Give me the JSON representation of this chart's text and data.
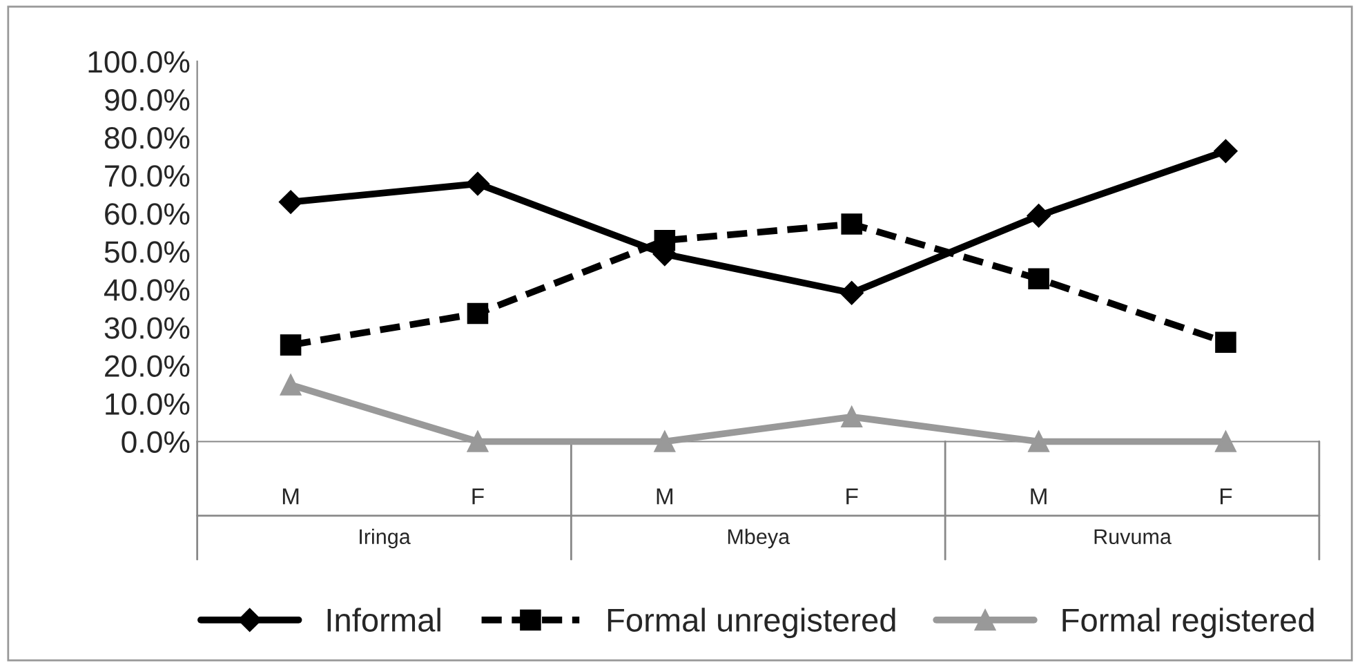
{
  "chart_data": {
    "type": "line",
    "categories": [
      "M",
      "F",
      "M",
      "F",
      "M",
      "F"
    ],
    "annotations": [
      "Iringa",
      "Mbeya",
      "Ruvuma"
    ],
    "series": [
      {
        "name": "Informal",
        "color": "#000000",
        "marker": "diamond",
        "line_style": "solid",
        "values": [
          63.0,
          67.8,
          49.3,
          39.1,
          59.4,
          76.4
        ]
      },
      {
        "name": "Formal unregistered",
        "color": "#000000",
        "marker": "square",
        "line_style": "dashed",
        "values": [
          25.4,
          33.7,
          52.9,
          57.2,
          42.8,
          26.1
        ]
      },
      {
        "name": "Formal registered",
        "color": "#999999",
        "marker": "triangle",
        "line_style": "solid",
        "values": [
          14.9,
          0,
          0,
          6.5,
          0,
          0
        ]
      }
    ],
    "ylim": [
      0,
      100
    ],
    "yticks": [
      {
        "value": 0,
        "label": "0.0%"
      },
      {
        "value": 10,
        "label": "10.0%"
      },
      {
        "value": 20,
        "label": "20.0%"
      },
      {
        "value": 30,
        "label": "30.0%"
      },
      {
        "value": 40,
        "label": "40.0%"
      },
      {
        "value": 50,
        "label": "50.0%"
      },
      {
        "value": 60,
        "label": "60.0%"
      },
      {
        "value": 70,
        "label": "70.0%"
      },
      {
        "value": 80,
        "label": "80.0%"
      },
      {
        "value": 90,
        "label": "90.0%"
      },
      {
        "value": 100,
        "label": "100.0%"
      }
    ],
    "grid": false,
    "legend": "bottom"
  }
}
